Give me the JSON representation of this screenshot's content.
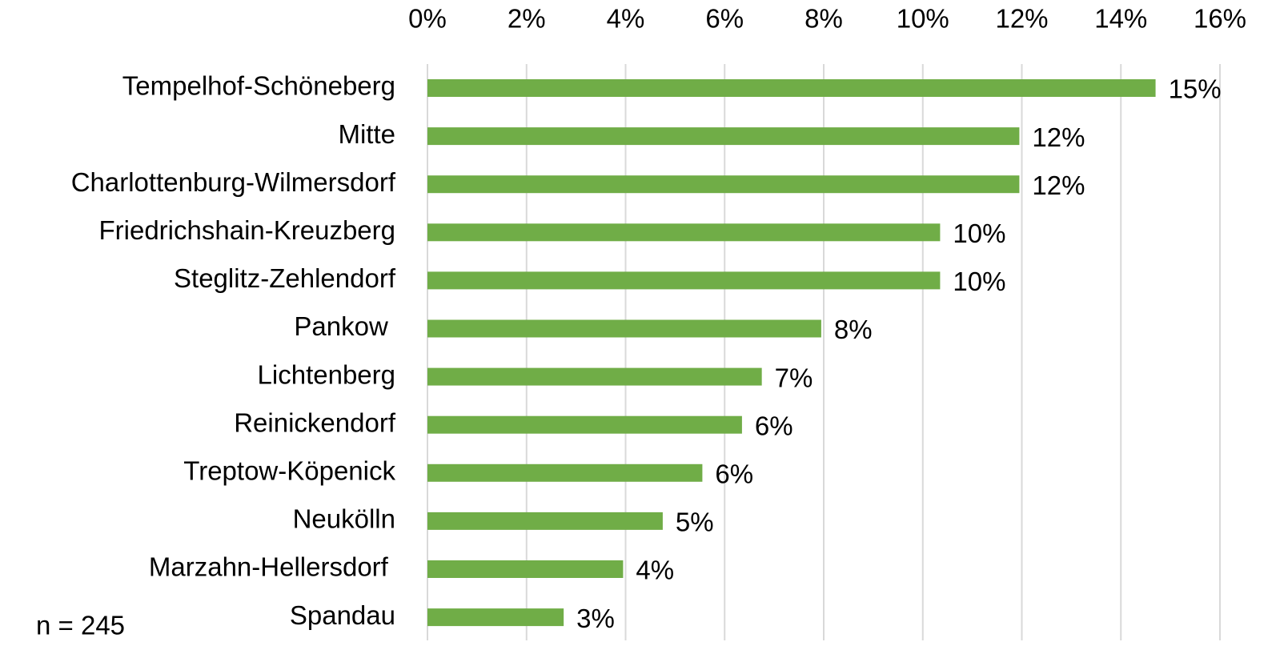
{
  "chart_data": {
    "type": "bar",
    "orientation": "horizontal",
    "categories": [
      "Tempelhof-Schöneberg",
      "Mitte",
      "Charlottenburg-Wilmersdorf",
      "Friedrichshain-Kreuzberg",
      "Steglitz-Zehlendorf",
      "Pankow ",
      "Lichtenberg",
      "Reinickendorf",
      "Treptow-Köpenick",
      "Neukölln",
      "Marzahn-Hellersdorf ",
      "Spandau"
    ],
    "values": [
      14.7,
      11.95,
      11.95,
      10.35,
      10.35,
      7.95,
      6.75,
      6.35,
      5.55,
      4.75,
      3.95,
      2.75
    ],
    "value_labels": [
      "15%",
      "12%",
      "12%",
      "10%",
      "10%",
      "8%",
      "7%",
      "6%",
      "6%",
      "5%",
      "4%",
      "3%"
    ],
    "color": "#70ad47",
    "xlim": [
      0,
      16
    ],
    "xticks": [
      {
        "value": 0,
        "label": "0%"
      },
      {
        "value": 2,
        "label": "2%"
      },
      {
        "value": 4,
        "label": "4%"
      },
      {
        "value": 6,
        "label": "6%"
      },
      {
        "value": 8,
        "label": "8%"
      },
      {
        "value": 10,
        "label": "10%"
      },
      {
        "value": 12,
        "label": "12%"
      },
      {
        "value": 14,
        "label": "14%"
      },
      {
        "value": 16,
        "label": "16%"
      }
    ],
    "grid": true,
    "annotation": "n = 245"
  }
}
